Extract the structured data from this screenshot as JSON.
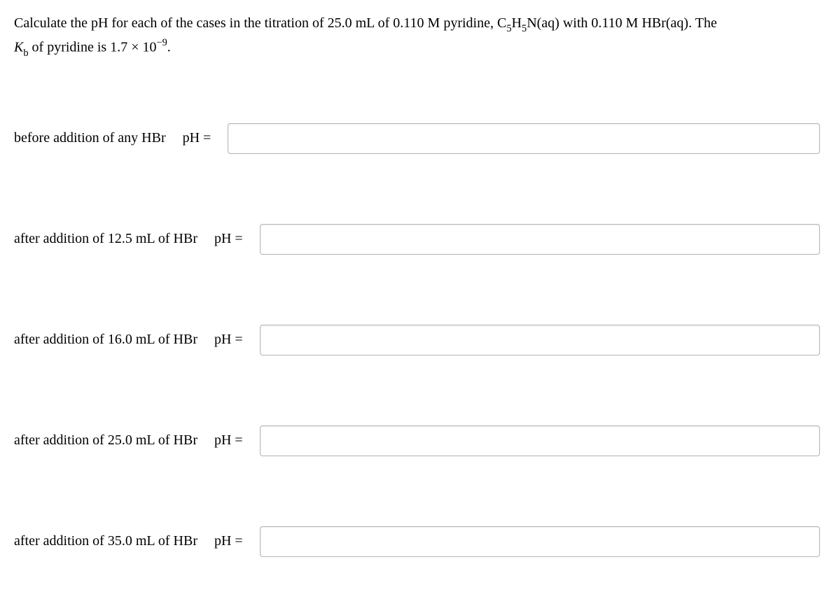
{
  "problem": {
    "line1_pre": "Calculate the pH for each of the cases in the titration of 25.0 mL of 0.110 M pyridine, C",
    "sub5a": "5",
    "mid1": "H",
    "sub5b": "5",
    "mid2": "N(aq) with 0.110 M HBr(aq). The",
    "line2_pre_italic": "K",
    "line2_sub": "b",
    "line2_mid": " of pyridine is 1.7 × 10",
    "line2_sup": "−9",
    "line2_end": "."
  },
  "rows": [
    {
      "label": "before addition of any HBr",
      "ph": "pH =",
      "value": ""
    },
    {
      "label": "after addition of 12.5 mL of HBr",
      "ph": "pH =",
      "value": ""
    },
    {
      "label": "after addition of 16.0 mL of HBr",
      "ph": "pH =",
      "value": ""
    },
    {
      "label": "after addition of 25.0 mL of HBr",
      "ph": "pH =",
      "value": ""
    },
    {
      "label": "after addition of 35.0 mL of HBr",
      "ph": "pH =",
      "value": ""
    }
  ]
}
